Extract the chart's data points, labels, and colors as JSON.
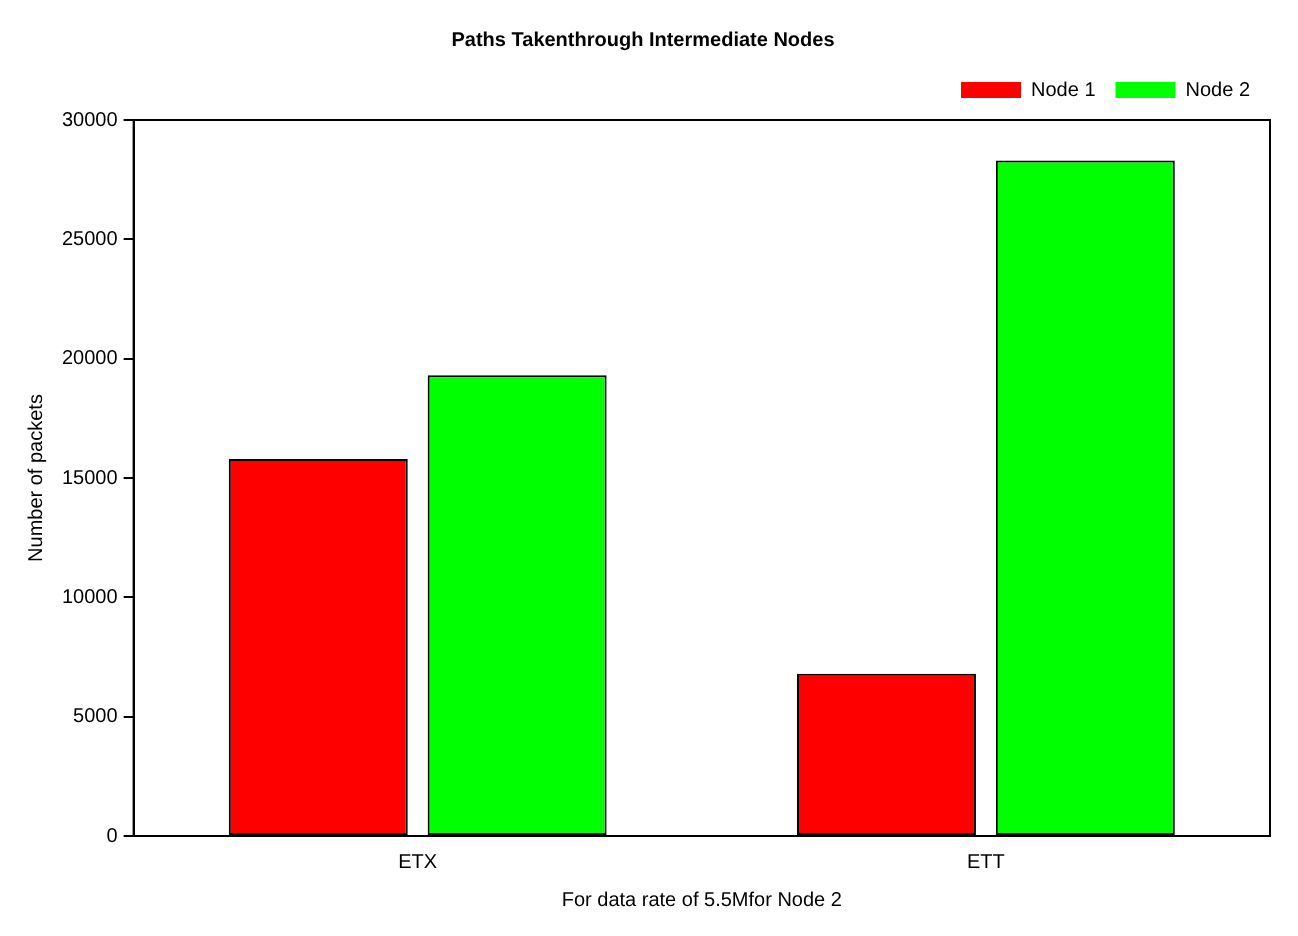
{
  "chart_data": {
    "type": "bar",
    "title": "Paths Takenthrough Intermediate Nodes",
    "xlabel": "For data rate of 5.5Mfor Node 2",
    "ylabel": "Number of packets",
    "categories": [
      "ETX",
      "ETT"
    ],
    "series": [
      {
        "name": "Node 1",
        "color": "#ff0000",
        "values": [
          15800,
          6800
        ]
      },
      {
        "name": "Node 2",
        "color": "#00ff00",
        "values": [
          19300,
          28300
        ]
      }
    ],
    "ylim": [
      0,
      30000
    ],
    "yticks": [
      0,
      5000,
      10000,
      15000,
      20000,
      25000,
      30000
    ],
    "grid": false,
    "legend": "top right"
  }
}
